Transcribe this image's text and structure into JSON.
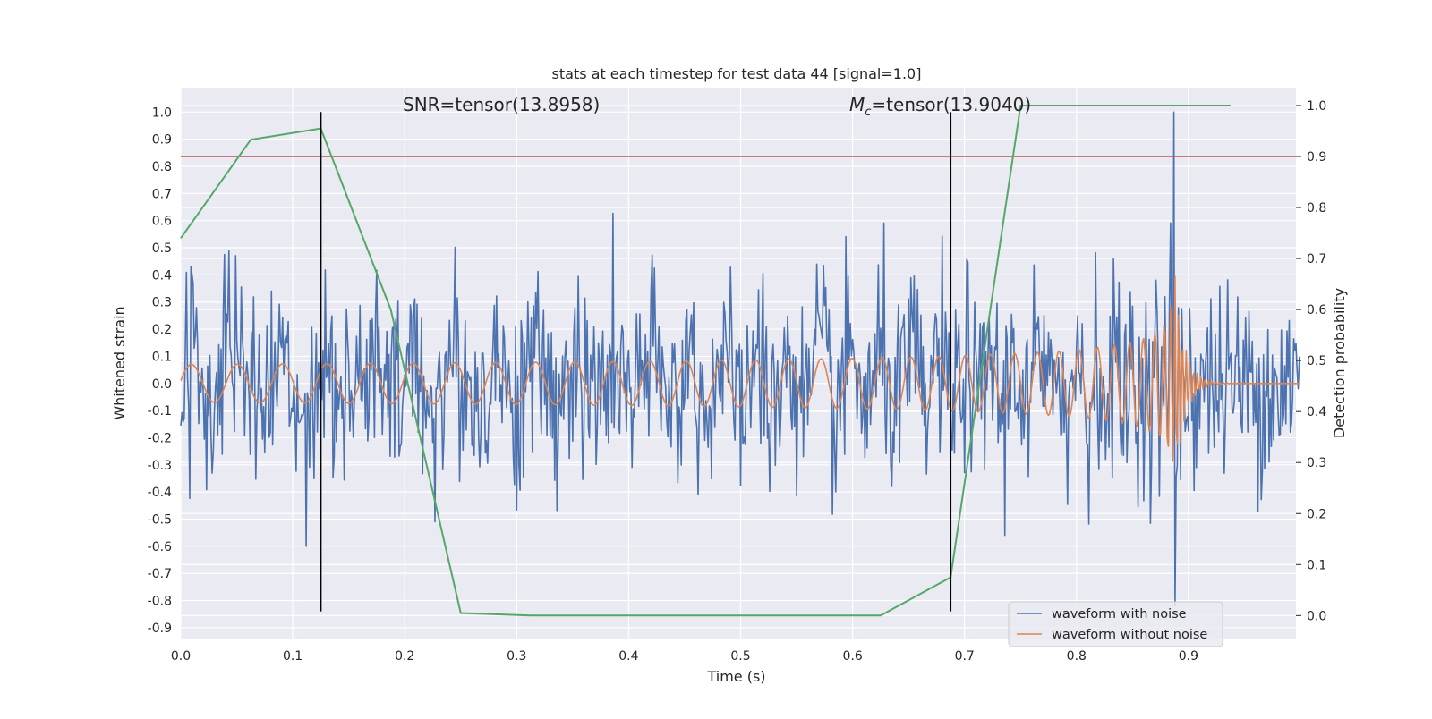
{
  "chart_data": {
    "type": "line",
    "title": "stats at each timestep for test data 44 [signal=1.0]",
    "xlabel": "Time (s)",
    "ylabel": "Whitened strain",
    "ylabel_right": "Detection probability",
    "xlim": [
      0.0,
      0.996
    ],
    "ylim": [
      -0.94,
      1.09
    ],
    "ylim_right": [
      -0.045,
      1.035
    ],
    "x_ticks": [
      "0.0",
      "0.1",
      "0.2",
      "0.3",
      "0.4",
      "0.5",
      "0.6",
      "0.7",
      "0.8",
      "0.9"
    ],
    "y_ticks": [
      "1.0",
      "0.9",
      "0.8",
      "0.7",
      "0.6",
      "0.5",
      "0.4",
      "0.3",
      "0.2",
      "0.1",
      "0.0",
      "-0.1",
      "-0.2",
      "-0.3",
      "-0.4",
      "-0.5",
      "-0.6",
      "-0.7",
      "-0.8",
      "-0.9"
    ],
    "y_ticks_right": [
      "1.0",
      "0.9",
      "0.8",
      "0.7",
      "0.6",
      "0.5",
      "0.4",
      "0.3",
      "0.2",
      "0.1",
      "0.0"
    ],
    "grid": true,
    "legend_placement": "lower-right",
    "annotations": {
      "snr_text": "SNR=tensor(13.8958)",
      "mc_symbol": "M",
      "mc_subscript": "c",
      "mc_value": "=tensor(13.9040)"
    },
    "vertical_lines": {
      "x": [
        0.125,
        0.6875
      ],
      "y_range": [
        -0.84,
        1.0
      ]
    },
    "threshold_line": {
      "y_right": 0.9,
      "color": "#c44e52"
    },
    "series": [
      {
        "name": "waveform with noise",
        "axis": "left",
        "color": "#4c72b0",
        "noise_amplitude": 0.18,
        "peak_x": 0.887,
        "peak_y": 1.0,
        "min_y": -0.82
      },
      {
        "name": "waveform without noise",
        "axis": "left",
        "color": "#dd8452",
        "chirp": {
          "start_amplitude": 0.07,
          "start_frequency_hz": 24,
          "merger_time": 0.887,
          "peak_amplitude": 0.45,
          "ringdown_end": 0.92
        }
      },
      {
        "name": "detection probability",
        "axis": "right",
        "color": "#55a868",
        "x": [
          0.0,
          0.0625,
          0.125,
          0.1875,
          0.25,
          0.3125,
          0.375,
          0.4375,
          0.5,
          0.5625,
          0.625,
          0.6875,
          0.75,
          0.8125,
          0.875,
          0.9375
        ],
        "values": [
          0.74,
          0.933,
          0.955,
          0.6,
          0.005,
          0.0,
          0.0,
          0.0,
          0.0,
          0.0,
          0.0,
          0.075,
          1.0,
          1.0,
          1.0,
          1.0
        ]
      }
    ],
    "colors": {
      "plot_background": "#eaeaf2",
      "grid": "#ffffff",
      "vertical_line": "#000000"
    }
  }
}
